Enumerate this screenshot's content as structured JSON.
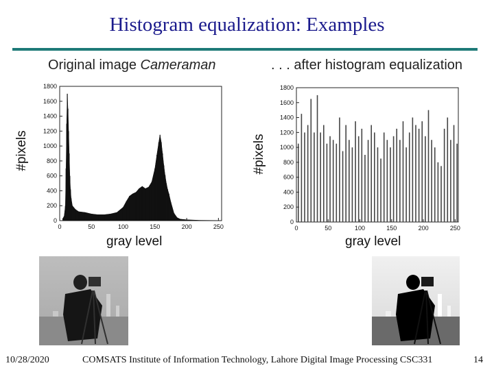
{
  "slide": {
    "title": "Histogram equalization: Examples",
    "left_heading_prefix": "Original image ",
    "left_heading_italic": "Cameraman",
    "right_heading": ". . . after histogram equalization",
    "footer_date": "10/28/2020",
    "footer_center": "COMSATS Institute of Information Technology, Lahore   Digital Image Processing CSC331",
    "footer_page": "14"
  },
  "colors": {
    "title": "#1a1a8c",
    "rule": "#1e7a78",
    "bars_original": "#111111",
    "bars_equalized": "#444444"
  },
  "chart_data": [
    {
      "type": "bar",
      "title": "Original image Cameraman",
      "xlabel": "gray level",
      "ylabel": "#pixels",
      "xlim": [
        0,
        255
      ],
      "ylim": [
        0,
        1800
      ],
      "xticks": [
        0,
        50,
        100,
        150,
        200,
        250
      ],
      "yticks": [
        0,
        200,
        400,
        600,
        800,
        1000,
        1200,
        1400,
        1600,
        1800
      ],
      "x": [
        5,
        7,
        9,
        10,
        11,
        12,
        13,
        14,
        15,
        16,
        17,
        18,
        20,
        25,
        30,
        40,
        50,
        60,
        70,
        80,
        90,
        100,
        105,
        110,
        115,
        120,
        125,
        130,
        135,
        140,
        145,
        150,
        153,
        156,
        158,
        160,
        162,
        164,
        166,
        168,
        170,
        172,
        175,
        180,
        185,
        190,
        200,
        210,
        220,
        240,
        255
      ],
      "values": [
        30,
        60,
        200,
        700,
        1300,
        1700,
        1500,
        1200,
        900,
        600,
        420,
        300,
        200,
        150,
        120,
        110,
        90,
        80,
        80,
        90,
        110,
        180,
        260,
        330,
        360,
        380,
        430,
        460,
        430,
        450,
        520,
        700,
        880,
        1050,
        1150,
        1050,
        900,
        740,
        610,
        500,
        420,
        360,
        250,
        100,
        40,
        20,
        12,
        8,
        5,
        3,
        2
      ]
    },
    {
      "type": "bar",
      "title": ". . . after histogram equalization",
      "xlabel": "gray level",
      "ylabel": "#pixels",
      "xlim": [
        0,
        255
      ],
      "ylim": [
        0,
        1800
      ],
      "xticks": [
        0,
        50,
        100,
        150,
        200,
        250
      ],
      "yticks": [
        0,
        200,
        400,
        600,
        800,
        1000,
        1200,
        1400,
        1600,
        1800
      ],
      "x": [
        3,
        8,
        13,
        18,
        23,
        28,
        33,
        38,
        43,
        48,
        53,
        58,
        63,
        68,
        73,
        78,
        83,
        88,
        93,
        98,
        103,
        108,
        113,
        118,
        123,
        128,
        133,
        138,
        143,
        148,
        153,
        158,
        163,
        168,
        173,
        178,
        183,
        188,
        193,
        198,
        203,
        208,
        213,
        218,
        223,
        228,
        233,
        238,
        243,
        248,
        253
      ],
      "values": [
        1050,
        1450,
        1200,
        1300,
        1650,
        1200,
        1700,
        1200,
        1300,
        1050,
        1150,
        1100,
        1050,
        1400,
        950,
        1300,
        1100,
        1000,
        1350,
        1150,
        1250,
        900,
        1100,
        1300,
        1200,
        1000,
        850,
        1200,
        1100,
        1000,
        1150,
        1250,
        1100,
        1350,
        1000,
        1200,
        1400,
        1300,
        1250,
        1350,
        1150,
        1500,
        1100,
        1000,
        800,
        750,
        1250,
        1400,
        1100,
        1300,
        1050
      ]
    }
  ]
}
